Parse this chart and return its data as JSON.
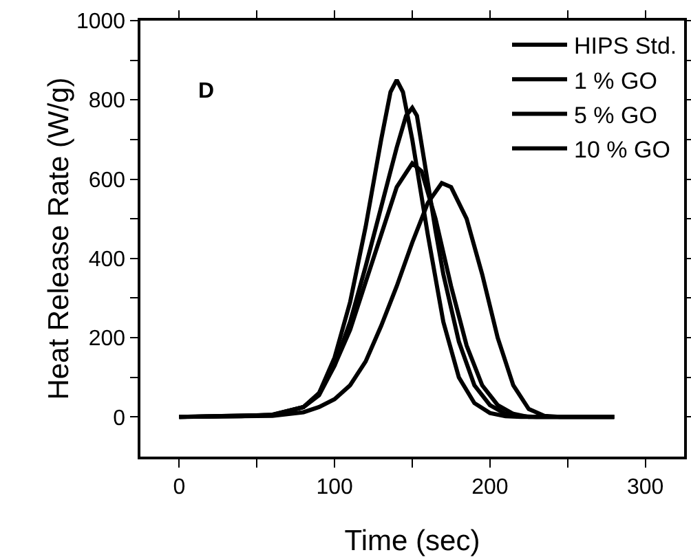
{
  "chart_data": {
    "type": "line",
    "xlabel": "Time (sec)",
    "ylabel": "Heat Release Rate (W/g)",
    "annotations": [
      "D"
    ],
    "xlim": [
      -25,
      325
    ],
    "xticks": [
      0,
      {
        "value": 50,
        "label": null
      },
      100,
      {
        "value": 150,
        "label": null
      },
      200,
      {
        "value": 250,
        "label": null
      },
      300
    ],
    "ylim": [
      -100,
      1000
    ],
    "yticks": [
      0,
      {
        "value": 100,
        "label": null
      },
      200,
      {
        "value": 300,
        "label": null
      },
      400,
      {
        "value": 500,
        "label": null
      },
      600,
      {
        "value": 700,
        "label": null
      },
      800,
      {
        "value": 900,
        "label": null
      },
      1000
    ],
    "grid": false,
    "legend": "top right",
    "line_style": "solid",
    "marker": "none",
    "series": [
      {
        "name": "HIPS Std.",
        "color": "#000000",
        "x": [
          0,
          40,
          60,
          80,
          90,
          100,
          110,
          120,
          130,
          136,
          140,
          144,
          150,
          160,
          170,
          180,
          190,
          200,
          210,
          220,
          280
        ],
        "values": [
          0,
          2,
          6,
          25,
          60,
          150,
          290,
          480,
          700,
          820,
          850,
          820,
          700,
          460,
          240,
          100,
          35,
          10,
          2,
          0,
          0
        ]
      },
      {
        "name": "1 % GO",
        "color": "#000000",
        "x": [
          0,
          60,
          80,
          90,
          100,
          110,
          120,
          130,
          140,
          146,
          150,
          153,
          158,
          165,
          170,
          180,
          190,
          200,
          210,
          220,
          230,
          280
        ],
        "values": [
          0,
          5,
          25,
          55,
          130,
          240,
          380,
          530,
          680,
          760,
          780,
          760,
          640,
          470,
          360,
          190,
          80,
          30,
          8,
          2,
          0,
          0
        ]
      },
      {
        "name": "5 % GO",
        "color": "#000000",
        "x": [
          0,
          60,
          80,
          90,
          100,
          110,
          120,
          130,
          140,
          150,
          156,
          165,
          175,
          185,
          195,
          205,
          215,
          225,
          280
        ],
        "values": [
          0,
          5,
          25,
          60,
          130,
          220,
          340,
          460,
          580,
          640,
          620,
          500,
          330,
          180,
          80,
          30,
          8,
          0,
          0
        ]
      },
      {
        "name": "10 % GO",
        "color": "#000000",
        "x": [
          0,
          60,
          80,
          90,
          100,
          110,
          120,
          130,
          140,
          150,
          160,
          169,
          175,
          185,
          195,
          205,
          215,
          225,
          235,
          245,
          280
        ],
        "values": [
          0,
          3,
          12,
          25,
          45,
          80,
          140,
          230,
          330,
          440,
          540,
          590,
          580,
          500,
          360,
          200,
          80,
          20,
          3,
          0,
          0
        ]
      }
    ]
  }
}
